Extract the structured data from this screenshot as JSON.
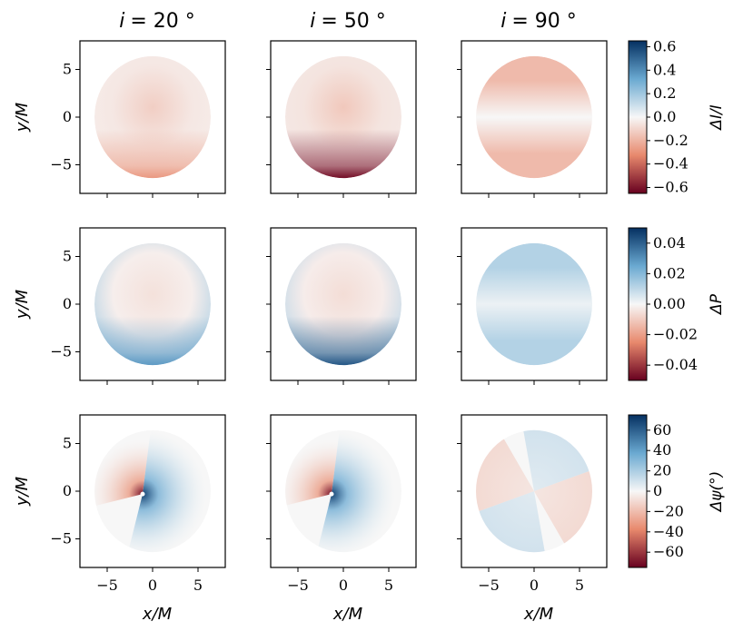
{
  "figure": {
    "columns": [
      {
        "key": "i20",
        "title": "i = 20 °",
        "title_var": "i",
        "title_val": "= 20 °"
      },
      {
        "key": "i50",
        "title": "i = 50 °",
        "title_var": "i",
        "title_val": "= 50 °"
      },
      {
        "key": "i90",
        "title": "i = 90 °",
        "title_var": "i",
        "title_val": "= 90 °"
      }
    ],
    "x_label": "x/M",
    "y_label": "y/M",
    "x_ticks": [
      "−5",
      "0",
      "5"
    ],
    "y_ticks": [
      "5",
      "0",
      "−5"
    ],
    "colors": {
      "neg_max": "#67001f",
      "neg_mid": "#e8896d",
      "zero": "#f7f7f7",
      "pos_mid": "#6aa9d1",
      "pos_max": "#053061"
    }
  },
  "chart_data": [
    {
      "type": "heatmap",
      "row": 0,
      "quantity": "ΔI/I",
      "colorbar": {
        "label": "ΔI/I",
        "range": [
          -0.65,
          0.65
        ],
        "ticks": [
          0.6,
          0.4,
          0.2,
          0.0,
          -0.2,
          -0.4,
          -0.6
        ],
        "tick_labels": [
          "0.6",
          "0.4",
          "0.2",
          "0.0",
          "−0.2",
          "−0.4",
          "−0.6"
        ]
      },
      "xlim": [
        -8,
        8
      ],
      "ylim": [
        -8,
        8
      ],
      "disk_radius": 6.4,
      "panels": [
        {
          "inclination": 20,
          "pattern": "radial",
          "center_value": -0.12,
          "edge_value": -0.03,
          "bottom_value": -0.28
        },
        {
          "inclination": 50,
          "pattern": "radial",
          "center_value": -0.14,
          "edge_value": -0.04,
          "bottom_value": -0.62
        },
        {
          "inclination": 90,
          "pattern": "bands",
          "center_value": 0.0,
          "top_value": -0.18,
          "bottom_value": -0.18
        }
      ]
    },
    {
      "type": "heatmap",
      "row": 1,
      "quantity": "ΔP",
      "colorbar": {
        "label": "ΔP",
        "range": [
          -0.05,
          0.05
        ],
        "ticks": [
          0.04,
          0.02,
          0.0,
          -0.02,
          -0.04
        ],
        "tick_labels": [
          "0.04",
          "0.02",
          "0.00",
          "−0.02",
          "−0.04"
        ]
      },
      "xlim": [
        -8,
        8
      ],
      "ylim": [
        -8,
        8
      ],
      "disk_radius": 6.4,
      "panels": [
        {
          "inclination": 20,
          "pattern": "radial",
          "center_value": -0.005,
          "edge_value": 0.012,
          "bottom_value": 0.028
        },
        {
          "inclination": 50,
          "pattern": "radial",
          "center_value": -0.006,
          "edge_value": 0.01,
          "bottom_value": 0.042
        },
        {
          "inclination": 90,
          "pattern": "bands",
          "center_value": 0.002,
          "top_value": 0.012,
          "bottom_value": 0.012
        }
      ]
    },
    {
      "type": "heatmap",
      "row": 2,
      "quantity": "Δψ(°)",
      "colorbar": {
        "label": "Δψ(°)",
        "range": [
          -75,
          75
        ],
        "ticks": [
          60,
          40,
          20,
          0,
          -20,
          -40,
          -60
        ],
        "tick_labels": [
          "60",
          "40",
          "20",
          "0",
          "−20",
          "−40",
          "−60"
        ]
      },
      "xlim": [
        -8,
        8
      ],
      "ylim": [
        -8,
        8
      ],
      "disk_radius": 6.4,
      "panels": [
        {
          "inclination": 20,
          "pattern": "vortex",
          "singularity": [
            -1.1,
            -0.3
          ],
          "amplitude": 70
        },
        {
          "inclination": 50,
          "pattern": "vortex",
          "singularity": [
            -1.3,
            -0.3
          ],
          "amplitude": 70
        },
        {
          "inclination": 90,
          "pattern": "quadrupole",
          "amplitude": 12
        }
      ]
    }
  ]
}
